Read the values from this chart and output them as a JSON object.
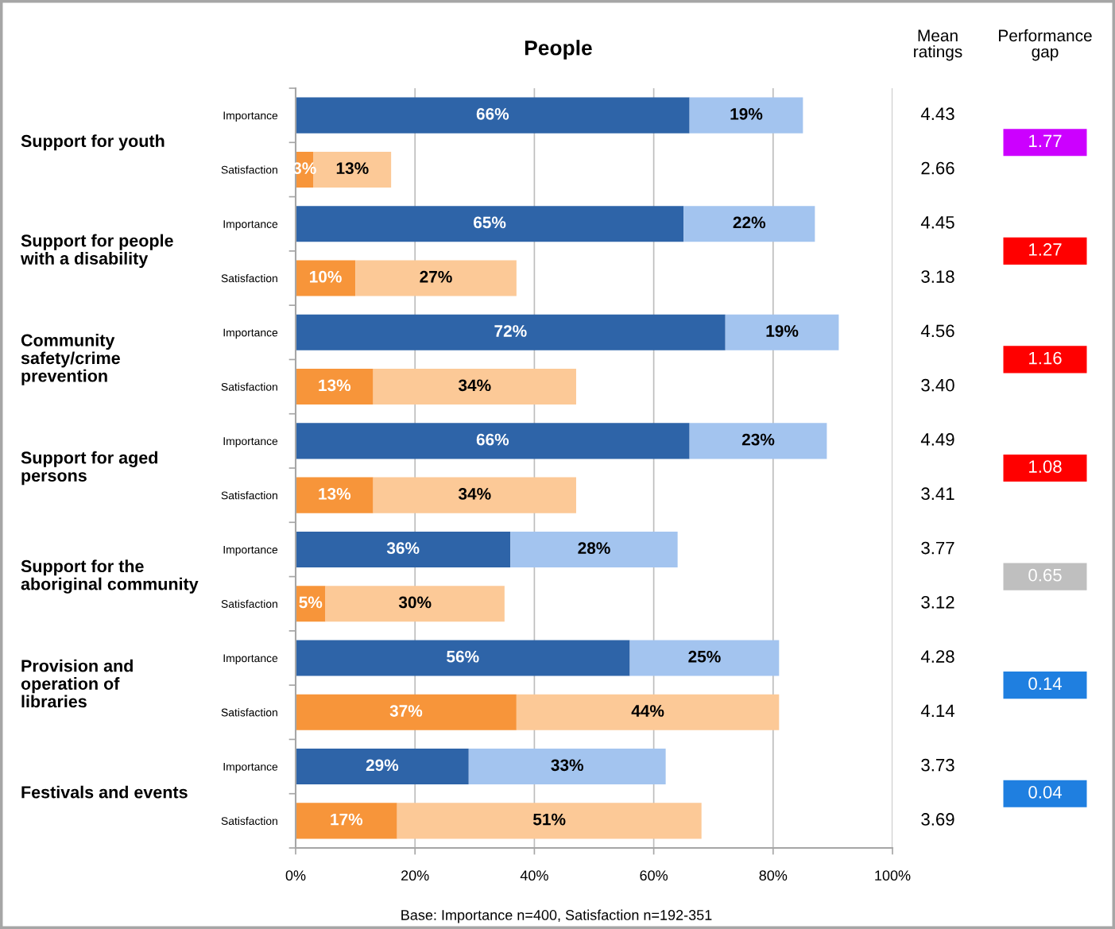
{
  "chart_data": [
    {
      "type": "bar",
      "orientation": "horizontal",
      "stacked": true,
      "title": "People",
      "categories": [
        "Importance",
        "Satisfaction",
        "Importance",
        "Satisfaction",
        "Importance",
        "Satisfaction",
        "Importance",
        "Satisfaction",
        "Importance",
        "Satisfaction",
        "Importance",
        "Satisfaction",
        "Importance",
        "Satisfaction"
      ],
      "series": [
        {
          "values": [
            66,
            3,
            65,
            10,
            72,
            13,
            66,
            13,
            36,
            5,
            56,
            37,
            29,
            17
          ],
          "colors": [
            "#2e64a8",
            "#f7953a",
            "#2e64a8",
            "#f7953a",
            "#2e64a8",
            "#f7953a",
            "#2e64a8",
            "#f7953a",
            "#2e64a8",
            "#f7953a",
            "#2e64a8",
            "#f7953a",
            "#2e64a8",
            "#f7953a"
          ],
          "value_labels": [
            "66%",
            "3%",
            "65%",
            "10%",
            "72%",
            "13%",
            "66%",
            "13%",
            "36%",
            "5%",
            "56%",
            "37%",
            "29%",
            "17%"
          ]
        },
        {
          "values": [
            19,
            13,
            22,
            27,
            19,
            34,
            23,
            34,
            28,
            30,
            25,
            44,
            33,
            51
          ],
          "colors": [
            "#a3c4ef",
            "#fcc997",
            "#a3c4ef",
            "#fcc997",
            "#a3c4ef",
            "#fcc997",
            "#a3c4ef",
            "#fcc997",
            "#a3c4ef",
            "#fcc997",
            "#a3c4ef",
            "#fcc997",
            "#a3c4ef",
            "#fcc997"
          ],
          "value_labels": [
            "19%",
            "13%",
            "22%",
            "27%",
            "19%",
            "34%",
            "23%",
            "34%",
            "28%",
            "30%",
            "25%",
            "44%",
            "33%",
            "51%"
          ]
        }
      ],
      "xlim": [
        0,
        100
      ],
      "xticks": [
        {
          "value": 0,
          "label": "0%"
        },
        {
          "value": 20,
          "label": "20%"
        },
        {
          "value": 40,
          "label": "40%"
        },
        {
          "value": 60,
          "label": "60%"
        },
        {
          "value": 80,
          "label": "80%"
        },
        {
          "value": 100,
          "label": "100%"
        }
      ],
      "grid": "x",
      "annotations": [
        "Support for youth",
        "Support for people\nwith a disability",
        "Community\nsafety/crime\nprevention",
        "Support for aged\npersons",
        "Support for the\naboriginal community",
        "Provision and\noperation of\nlibraries",
        "Festivals and events",
        "Base: Importance n=400, Satisfaction n=192-351"
      ]
    },
    {
      "type": "other",
      "title": "Mean\nratings",
      "annotations": [
        "4.43",
        "2.66",
        "4.45",
        "3.18",
        "4.56",
        "3.40",
        "4.49",
        "3.41",
        "3.77",
        "3.12",
        "4.28",
        "4.14",
        "3.73",
        "3.69"
      ]
    },
    {
      "type": "other",
      "title": "Performance\ngap",
      "annotations": [
        "1.77",
        "1.27",
        "1.16",
        "1.08",
        "0.65",
        "0.14",
        "0.04"
      ],
      "colors": [
        "#cc00ff",
        "#ff0000",
        "#ff0000",
        "#ff0000",
        "#bfbfbf",
        "#1f7fe0",
        "#1f7fe0"
      ]
    }
  ]
}
